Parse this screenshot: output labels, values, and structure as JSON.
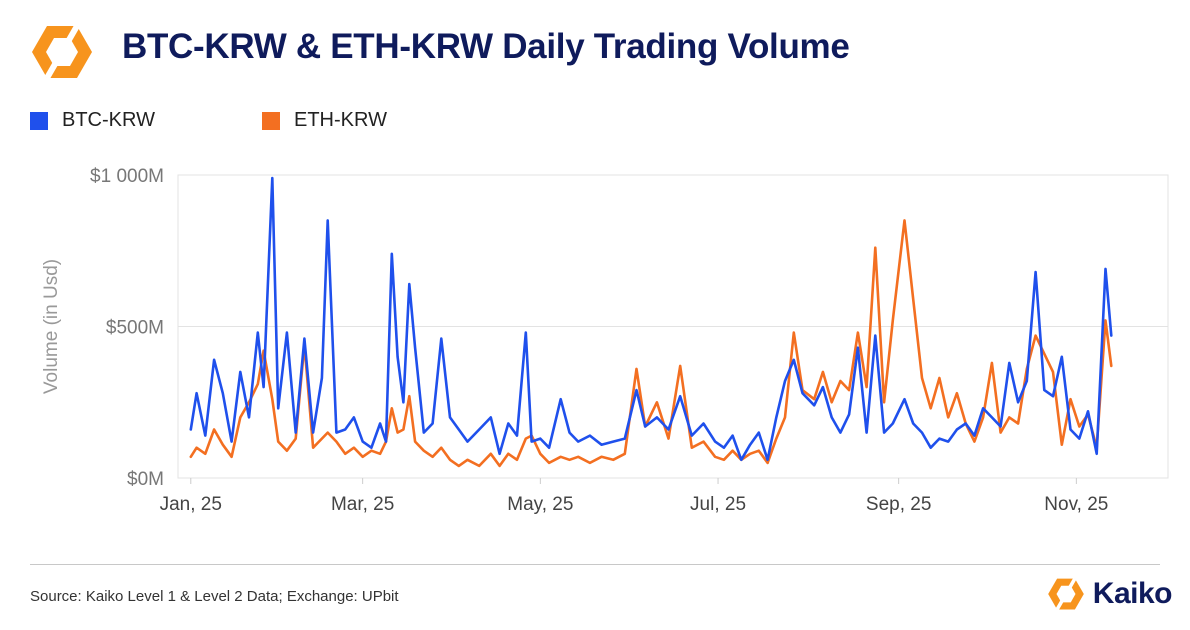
{
  "title": "BTC-KRW & ETH-KRW Daily Trading Volume",
  "source": "Source: Kaiko Level 1 & Level 2 Data; Exchange: UPbit",
  "brand": "Kaiko",
  "icons": {
    "header_logo": "kaiko-logo-icon",
    "footer_logo": "kaiko-logo-icon"
  },
  "colors": {
    "btc": "#1f50ec",
    "eth": "#f36f21",
    "logo_orange": "#f7941d",
    "title": "#0f1b5c"
  },
  "chart_data": {
    "type": "line",
    "ylabel": "Volume (in Usd)",
    "xlabel": "",
    "ylim": [
      0,
      1000
    ],
    "y_unit": "$M",
    "yticks": [
      0,
      500,
      1000
    ],
    "ytick_labels": [
      "$0M",
      "$500M",
      "$1 000M"
    ],
    "xticks": [
      "2025-01-01",
      "2025-03-01",
      "2025-05-01",
      "2025-07-01",
      "2025-09-01",
      "2025-11-01"
    ],
    "xtick_labels": [
      "Jan, 25",
      "Mar, 25",
      "May, 25",
      "Jul, 25",
      "Sep, 25",
      "Nov, 25"
    ],
    "grid": true,
    "legend_position": "top-left",
    "series": [
      {
        "name": "BTC-KRW",
        "color": "#1f50ec",
        "points": [
          [
            "2025-01-01",
            160
          ],
          [
            "2025-01-03",
            280
          ],
          [
            "2025-01-06",
            140
          ],
          [
            "2025-01-09",
            390
          ],
          [
            "2025-01-12",
            280
          ],
          [
            "2025-01-15",
            120
          ],
          [
            "2025-01-18",
            350
          ],
          [
            "2025-01-21",
            200
          ],
          [
            "2025-01-24",
            480
          ],
          [
            "2025-01-26",
            300
          ],
          [
            "2025-01-29",
            990
          ],
          [
            "2025-01-31",
            230
          ],
          [
            "2025-02-03",
            480
          ],
          [
            "2025-02-06",
            150
          ],
          [
            "2025-02-09",
            460
          ],
          [
            "2025-02-12",
            150
          ],
          [
            "2025-02-15",
            330
          ],
          [
            "2025-02-17",
            850
          ],
          [
            "2025-02-20",
            150
          ],
          [
            "2025-02-23",
            160
          ],
          [
            "2025-02-26",
            200
          ],
          [
            "2025-03-01",
            120
          ],
          [
            "2025-03-04",
            100
          ],
          [
            "2025-03-07",
            180
          ],
          [
            "2025-03-09",
            120
          ],
          [
            "2025-03-11",
            740
          ],
          [
            "2025-03-13",
            400
          ],
          [
            "2025-03-15",
            250
          ],
          [
            "2025-03-17",
            640
          ],
          [
            "2025-03-19",
            430
          ],
          [
            "2025-03-22",
            150
          ],
          [
            "2025-03-25",
            180
          ],
          [
            "2025-03-28",
            460
          ],
          [
            "2025-03-31",
            200
          ],
          [
            "2025-04-03",
            160
          ],
          [
            "2025-04-06",
            120
          ],
          [
            "2025-04-10",
            160
          ],
          [
            "2025-04-14",
            200
          ],
          [
            "2025-04-17",
            80
          ],
          [
            "2025-04-20",
            180
          ],
          [
            "2025-04-23",
            140
          ],
          [
            "2025-04-26",
            480
          ],
          [
            "2025-04-28",
            120
          ],
          [
            "2025-05-01",
            130
          ],
          [
            "2025-05-04",
            100
          ],
          [
            "2025-05-08",
            260
          ],
          [
            "2025-05-11",
            150
          ],
          [
            "2025-05-14",
            120
          ],
          [
            "2025-05-18",
            140
          ],
          [
            "2025-05-22",
            110
          ],
          [
            "2025-05-26",
            120
          ],
          [
            "2025-05-30",
            130
          ],
          [
            "2025-06-03",
            290
          ],
          [
            "2025-06-06",
            170
          ],
          [
            "2025-06-10",
            200
          ],
          [
            "2025-06-14",
            160
          ],
          [
            "2025-06-18",
            270
          ],
          [
            "2025-06-22",
            140
          ],
          [
            "2025-06-26",
            180
          ],
          [
            "2025-06-30",
            120
          ],
          [
            "2025-07-03",
            100
          ],
          [
            "2025-07-06",
            140
          ],
          [
            "2025-07-09",
            60
          ],
          [
            "2025-07-12",
            110
          ],
          [
            "2025-07-15",
            150
          ],
          [
            "2025-07-18",
            60
          ],
          [
            "2025-07-21",
            200
          ],
          [
            "2025-07-24",
            320
          ],
          [
            "2025-07-27",
            390
          ],
          [
            "2025-07-30",
            280
          ],
          [
            "2025-08-03",
            240
          ],
          [
            "2025-08-06",
            300
          ],
          [
            "2025-08-09",
            200
          ],
          [
            "2025-08-12",
            150
          ],
          [
            "2025-08-15",
            210
          ],
          [
            "2025-08-18",
            430
          ],
          [
            "2025-08-21",
            150
          ],
          [
            "2025-08-24",
            470
          ],
          [
            "2025-08-27",
            150
          ],
          [
            "2025-08-30",
            180
          ],
          [
            "2025-09-03",
            260
          ],
          [
            "2025-09-06",
            180
          ],
          [
            "2025-09-09",
            150
          ],
          [
            "2025-09-12",
            100
          ],
          [
            "2025-09-15",
            130
          ],
          [
            "2025-09-18",
            120
          ],
          [
            "2025-09-21",
            160
          ],
          [
            "2025-09-24",
            180
          ],
          [
            "2025-09-27",
            140
          ],
          [
            "2025-09-30",
            230
          ],
          [
            "2025-10-03",
            200
          ],
          [
            "2025-10-06",
            170
          ],
          [
            "2025-10-09",
            380
          ],
          [
            "2025-10-12",
            250
          ],
          [
            "2025-10-15",
            320
          ],
          [
            "2025-10-18",
            680
          ],
          [
            "2025-10-21",
            290
          ],
          [
            "2025-10-24",
            270
          ],
          [
            "2025-10-27",
            400
          ],
          [
            "2025-10-30",
            160
          ],
          [
            "2025-11-02",
            130
          ],
          [
            "2025-11-05",
            220
          ],
          [
            "2025-11-08",
            80
          ],
          [
            "2025-11-11",
            690
          ],
          [
            "2025-11-13",
            470
          ]
        ]
      },
      {
        "name": "ETH-KRW",
        "color": "#f36f21",
        "points": [
          [
            "2025-01-01",
            70
          ],
          [
            "2025-01-03",
            100
          ],
          [
            "2025-01-06",
            80
          ],
          [
            "2025-01-09",
            160
          ],
          [
            "2025-01-12",
            110
          ],
          [
            "2025-01-15",
            70
          ],
          [
            "2025-01-18",
            200
          ],
          [
            "2025-01-21",
            250
          ],
          [
            "2025-01-24",
            310
          ],
          [
            "2025-01-26",
            420
          ],
          [
            "2025-01-29",
            260
          ],
          [
            "2025-01-31",
            120
          ],
          [
            "2025-02-03",
            90
          ],
          [
            "2025-02-06",
            130
          ],
          [
            "2025-02-09",
            440
          ],
          [
            "2025-02-12",
            100
          ],
          [
            "2025-02-15",
            130
          ],
          [
            "2025-02-17",
            150
          ],
          [
            "2025-02-20",
            120
          ],
          [
            "2025-02-23",
            80
          ],
          [
            "2025-02-26",
            100
          ],
          [
            "2025-03-01",
            70
          ],
          [
            "2025-03-04",
            90
          ],
          [
            "2025-03-07",
            80
          ],
          [
            "2025-03-09",
            120
          ],
          [
            "2025-03-11",
            230
          ],
          [
            "2025-03-13",
            150
          ],
          [
            "2025-03-15",
            160
          ],
          [
            "2025-03-17",
            270
          ],
          [
            "2025-03-19",
            120
          ],
          [
            "2025-03-22",
            90
          ],
          [
            "2025-03-25",
            70
          ],
          [
            "2025-03-28",
            100
          ],
          [
            "2025-03-31",
            60
          ],
          [
            "2025-04-03",
            40
          ],
          [
            "2025-04-06",
            60
          ],
          [
            "2025-04-10",
            40
          ],
          [
            "2025-04-14",
            80
          ],
          [
            "2025-04-17",
            40
          ],
          [
            "2025-04-20",
            80
          ],
          [
            "2025-04-23",
            60
          ],
          [
            "2025-04-26",
            130
          ],
          [
            "2025-04-28",
            140
          ],
          [
            "2025-05-01",
            80
          ],
          [
            "2025-05-04",
            50
          ],
          [
            "2025-05-08",
            70
          ],
          [
            "2025-05-11",
            60
          ],
          [
            "2025-05-14",
            70
          ],
          [
            "2025-05-18",
            50
          ],
          [
            "2025-05-22",
            70
          ],
          [
            "2025-05-26",
            60
          ],
          [
            "2025-05-30",
            80
          ],
          [
            "2025-06-03",
            360
          ],
          [
            "2025-06-06",
            170
          ],
          [
            "2025-06-10",
            250
          ],
          [
            "2025-06-14",
            130
          ],
          [
            "2025-06-18",
            370
          ],
          [
            "2025-06-22",
            100
          ],
          [
            "2025-06-26",
            120
          ],
          [
            "2025-06-30",
            70
          ],
          [
            "2025-07-03",
            60
          ],
          [
            "2025-07-06",
            90
          ],
          [
            "2025-07-09",
            60
          ],
          [
            "2025-07-12",
            80
          ],
          [
            "2025-07-15",
            90
          ],
          [
            "2025-07-18",
            50
          ],
          [
            "2025-07-21",
            130
          ],
          [
            "2025-07-24",
            200
          ],
          [
            "2025-07-27",
            480
          ],
          [
            "2025-07-30",
            290
          ],
          [
            "2025-08-03",
            260
          ],
          [
            "2025-08-06",
            350
          ],
          [
            "2025-08-09",
            250
          ],
          [
            "2025-08-12",
            320
          ],
          [
            "2025-08-15",
            290
          ],
          [
            "2025-08-18",
            480
          ],
          [
            "2025-08-21",
            300
          ],
          [
            "2025-08-24",
            760
          ],
          [
            "2025-08-27",
            250
          ],
          [
            "2025-08-30",
            520
          ],
          [
            "2025-09-03",
            850
          ],
          [
            "2025-09-06",
            590
          ],
          [
            "2025-09-09",
            330
          ],
          [
            "2025-09-12",
            230
          ],
          [
            "2025-09-15",
            330
          ],
          [
            "2025-09-18",
            200
          ],
          [
            "2025-09-21",
            280
          ],
          [
            "2025-09-24",
            180
          ],
          [
            "2025-09-27",
            120
          ],
          [
            "2025-09-30",
            200
          ],
          [
            "2025-10-03",
            380
          ],
          [
            "2025-10-06",
            150
          ],
          [
            "2025-10-09",
            200
          ],
          [
            "2025-10-12",
            180
          ],
          [
            "2025-10-15",
            360
          ],
          [
            "2025-10-18",
            470
          ],
          [
            "2025-10-21",
            410
          ],
          [
            "2025-10-24",
            350
          ],
          [
            "2025-10-27",
            110
          ],
          [
            "2025-10-30",
            260
          ],
          [
            "2025-11-02",
            170
          ],
          [
            "2025-11-05",
            210
          ],
          [
            "2025-11-08",
            100
          ],
          [
            "2025-11-11",
            520
          ],
          [
            "2025-11-13",
            370
          ]
        ]
      }
    ]
  }
}
